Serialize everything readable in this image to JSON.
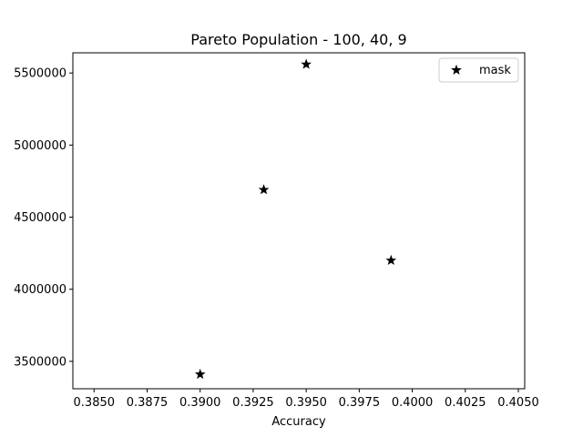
{
  "chart_data": {
    "type": "scatter",
    "title": "Pareto Population - 100, 40, 9",
    "xlabel": "Accuracy",
    "ylabel": "",
    "xlim": [
      0.384,
      0.4053
    ],
    "ylim": [
      3310000,
      5640000
    ],
    "x_ticks": [
      0.385,
      0.3875,
      0.39,
      0.3925,
      0.395,
      0.3975,
      0.4,
      0.4025,
      0.405
    ],
    "x_tick_labels": [
      "0.3850",
      "0.3875",
      "0.3900",
      "0.3925",
      "0.3950",
      "0.3975",
      "0.4000",
      "0.4025",
      "0.4050"
    ],
    "y_ticks": [
      3500000,
      4000000,
      4500000,
      5000000,
      5500000
    ],
    "y_tick_labels": [
      "3500000",
      "4000000",
      "4500000",
      "5000000",
      "5500000"
    ],
    "grid": false,
    "legend_position": "top-right",
    "series": [
      {
        "name": "mask",
        "marker": "star",
        "color": "#000000",
        "points": [
          {
            "x": 0.39,
            "y": 3410000
          },
          {
            "x": 0.393,
            "y": 4690000
          },
          {
            "x": 0.395,
            "y": 5560000
          },
          {
            "x": 0.399,
            "y": 4200000
          }
        ]
      }
    ]
  }
}
